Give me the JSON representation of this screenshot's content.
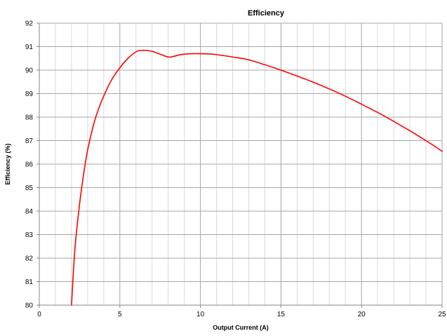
{
  "chart_data": {
    "type": "line",
    "title": "Efficiency",
    "xlabel": "Output Current (A)",
    "ylabel": "Efficiency (%)",
    "xlim": [
      0,
      25
    ],
    "ylim": [
      80,
      92
    ],
    "x_ticks": [
      0,
      5,
      10,
      15,
      20,
      25
    ],
    "y_ticks": [
      80,
      81,
      82,
      83,
      84,
      85,
      86,
      87,
      88,
      89,
      90,
      91,
      92
    ],
    "x_minor_step": 1,
    "grid": true,
    "legend": "none",
    "series": [
      {
        "color": "#ff0000",
        "x": [
          2.0,
          2.2,
          2.5,
          2.8,
          3.0,
          3.3,
          3.6,
          4.0,
          4.5,
          5.0,
          5.5,
          6.0,
          6.3,
          6.6,
          7.0,
          7.5,
          8.0,
          8.3,
          8.7,
          9.0,
          9.5,
          10.0,
          10.5,
          11.0,
          12.0,
          13.0,
          14.0,
          15.0,
          16.0,
          17.0,
          18.0,
          19.0,
          20.0,
          21.0,
          22.0,
          23.0,
          24.0,
          25.0
        ],
        "y": [
          80.0,
          82.3,
          84.3,
          85.8,
          86.6,
          87.5,
          88.2,
          88.9,
          89.6,
          90.1,
          90.5,
          90.78,
          90.84,
          90.84,
          90.8,
          90.68,
          90.56,
          90.58,
          90.65,
          90.68,
          90.7,
          90.7,
          90.69,
          90.66,
          90.56,
          90.44,
          90.23,
          90.0,
          89.75,
          89.49,
          89.2,
          88.89,
          88.55,
          88.2,
          87.82,
          87.42,
          87.0,
          86.55
        ]
      }
    ]
  }
}
